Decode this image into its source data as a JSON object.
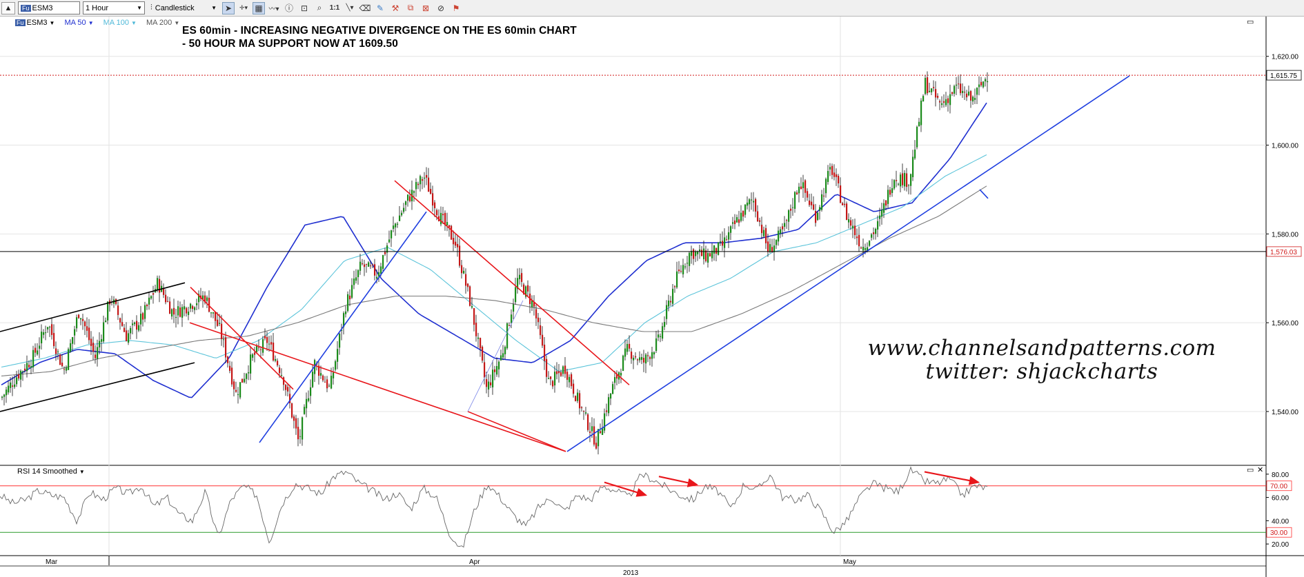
{
  "toolbar": {
    "symbol_badge": "Fu",
    "symbol_value": "ESM3",
    "interval_value": "1 Hour",
    "chart_type_value": "Candlestick",
    "icons": [
      "arrow-icon",
      "crosshair-icon",
      "grid-icon",
      "draw-icon",
      "info-icon",
      "annotate-icon",
      "zoom-icon",
      "one-to-one-icon",
      "line-icon",
      "eraser-icon",
      "paint-icon",
      "tools-icon",
      "copy-icon",
      "clear-icon",
      "gauge-icon"
    ],
    "one_to_one_label": "1:1"
  },
  "legend": {
    "symbol": "ESM3",
    "ma50": "MA 50",
    "ma100": "MA 100",
    "ma200": "MA 200"
  },
  "annotation_title": {
    "line1": "ES 60min - INCREASING NEGATIVE DIVERGENCE ON THE ES 60min CHART",
    "line2": "- 50 HOUR MA SUPPORT NOW AT 1609.50"
  },
  "watermark": {
    "line1": "www.channelsandpatterns.com",
    "line2": "twitter: shjackcharts"
  },
  "rsi_panel": {
    "label": "RSI 14 Smoothed",
    "close_glyph": "✕",
    "maximize_glyph": "▭"
  },
  "price_panel": {
    "maximize_glyph": "▭"
  },
  "colors": {
    "ma50": "#1f2fd0",
    "ma100": "#5cc4da",
    "ma200": "#7a7a7a",
    "trend_red": "#e8161b",
    "trend_blue": "#1f3fe0",
    "up_candle": "#1a8a1a",
    "down_candle": "#c41717",
    "rsi_line": "#666666",
    "rsi_upper": "#ff3030",
    "rsi_lower": "#2a9a2a"
  },
  "chart_data": {
    "type": "candlestick",
    "title": "ES 60min - INCREASING NEGATIVE DIVERGENCE ON THE ES 60min CHART",
    "y_axis": {
      "ticks": [
        "1,540.00",
        "1,560.00",
        "1,580.00",
        "1,600.00",
        "1,620.00"
      ],
      "tick_values": [
        1540,
        1560,
        1580,
        1600,
        1620
      ],
      "ylim": [
        1528.5,
        1628.5
      ]
    },
    "x_axis": {
      "labels": [
        "Mar",
        "Apr",
        "May"
      ],
      "year_label": "2013"
    },
    "price_markers": {
      "last": {
        "value": 1615.75,
        "label": "1,615.75"
      },
      "horizontal": {
        "value": 1576.03,
        "label": "1,576.03"
      }
    },
    "price_path": [
      1543,
      1548,
      1552,
      1560,
      1549,
      1563,
      1552,
      1566,
      1557,
      1561,
      1569,
      1562,
      1564,
      1566,
      1558,
      1544,
      1552,
      1556,
      1548,
      1533,
      1551,
      1545,
      1564,
      1573,
      1571,
      1581,
      1588,
      1593,
      1584,
      1578,
      1564,
      1545,
      1553,
      1570,
      1564,
      1546,
      1550,
      1541,
      1533,
      1545,
      1554,
      1551,
      1556,
      1569,
      1576,
      1575,
      1577,
      1583,
      1588,
      1576,
      1581,
      1592,
      1584,
      1595,
      1584,
      1577,
      1582,
      1593,
      1592,
      1614,
      1609,
      1613,
      1610,
      1616
    ],
    "ma_series": [
      {
        "name": "MA 50",
        "values": [
          1546,
          1551,
          1554,
          1553,
          1547,
          1543,
          1552,
          1568,
          1582,
          1584,
          1570,
          1562,
          1557,
          1552,
          1551,
          1556,
          1566,
          1574,
          1578,
          1578,
          1579,
          1581,
          1589,
          1585,
          1587,
          1597,
          1610
        ]
      },
      {
        "name": "MA 100",
        "values": [
          1550,
          1552,
          1555,
          1556,
          1555,
          1552,
          1556,
          1563,
          1574,
          1577,
          1572,
          1564,
          1556,
          1549,
          1551,
          1560,
          1566,
          1570,
          1576,
          1578,
          1582,
          1586,
          1593,
          1598
        ]
      },
      {
        "name": "MA 200",
        "values": [
          1548,
          1549,
          1552,
          1554,
          1556,
          1557,
          1560,
          1564,
          1566,
          1566,
          1565,
          1563,
          1560,
          1558,
          1558,
          1562,
          1567,
          1573,
          1579,
          1584,
          1591
        ]
      }
    ],
    "trendlines": [
      {
        "color": "black",
        "points": [
          [
            0,
            1558
          ],
          [
            268,
            1569
          ]
        ]
      },
      {
        "color": "black",
        "points": [
          [
            0,
            1540
          ],
          [
            282,
            1551
          ]
        ]
      },
      {
        "color": "red",
        "points": [
          [
            276,
            1568
          ],
          [
            425,
            1545
          ]
        ]
      },
      {
        "color": "red",
        "points": [
          [
            275,
            1560
          ],
          [
            820,
            1531
          ]
        ]
      },
      {
        "color": "red",
        "points": [
          [
            572,
            1592
          ],
          [
            912,
            1546
          ]
        ]
      },
      {
        "color": "red",
        "points": [
          [
            678,
            1540
          ],
          [
            820,
            1531
          ]
        ]
      },
      {
        "color": "blue",
        "points": [
          [
            376,
            1533
          ],
          [
            618,
            1585
          ]
        ]
      },
      {
        "color": "blue",
        "points": [
          [
            822,
            1531
          ],
          [
            1637,
            1615.6
          ]
        ]
      },
      {
        "color": "blue",
        "points": [
          [
            1420,
            1590
          ],
          [
            1432,
            1588
          ]
        ]
      }
    ],
    "rsi": {
      "name": "RSI 14 Smoothed",
      "ticks": [
        "20.00",
        "40.00",
        "60.00",
        "80.00"
      ],
      "tick_values": [
        20,
        40,
        60,
        80
      ],
      "ylim": [
        10,
        87
      ],
      "upper": {
        "value": 70,
        "label": "70.00"
      },
      "lower": {
        "value": 30,
        "label": "30.00"
      },
      "values": [
        62,
        55,
        58,
        66,
        62,
        60,
        40,
        65,
        58,
        68,
        63,
        70,
        52,
        60,
        45,
        40,
        65,
        25,
        58,
        70,
        62,
        22,
        55,
        72,
        68,
        63,
        78,
        82,
        72,
        66,
        58,
        64,
        50,
        68,
        60,
        30,
        15,
        50,
        72,
        60,
        45,
        35,
        52,
        60,
        48,
        62,
        58,
        70,
        66,
        60,
        80,
        75,
        68,
        62,
        58,
        70,
        65,
        50,
        72,
        66,
        80,
        60,
        58,
        62,
        48,
        30,
        40,
        60,
        72,
        68,
        65,
        84,
        74,
        72,
        76,
        62,
        70,
        68
      ],
      "divergence_arrows": [
        {
          "from": [
            876,
            73
          ],
          "to": [
            936,
            62
          ]
        },
        {
          "from": [
            955,
            78
          ],
          "to": [
            1010,
            71
          ]
        },
        {
          "from": [
            1340,
            82
          ],
          "to": [
            1418,
            73
          ]
        }
      ]
    }
  }
}
